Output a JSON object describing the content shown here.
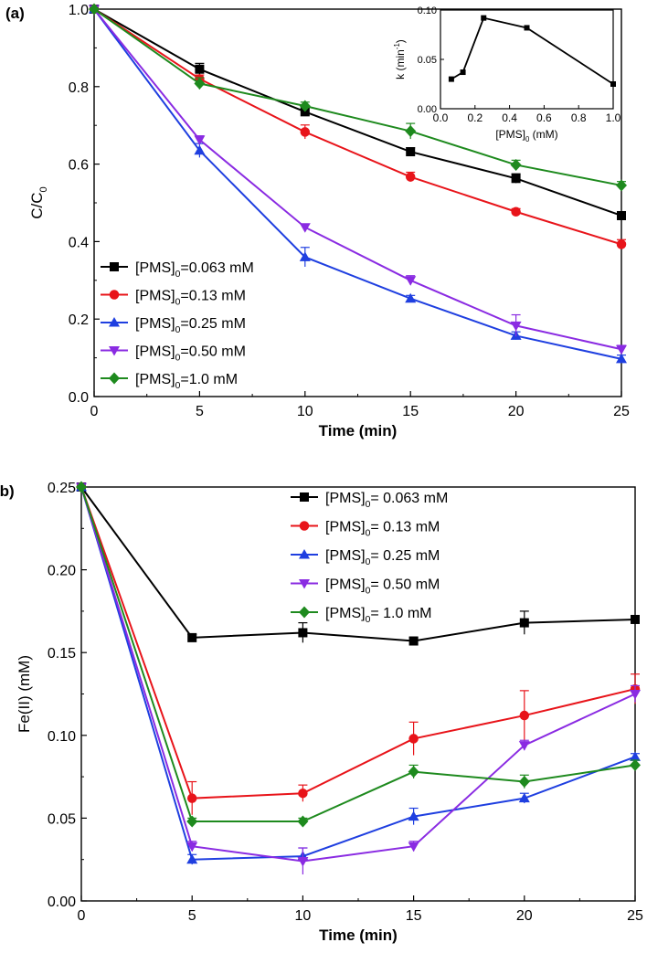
{
  "chart_data": [
    {
      "panel": "(a)",
      "type": "line",
      "xlabel": "Time (min)",
      "ylabel": "C/C",
      "ylabel_sub": "0",
      "x": [
        0,
        5,
        10,
        15,
        20,
        25
      ],
      "xlim": [
        0,
        25
      ],
      "ylim": [
        0.0,
        1.0
      ],
      "xticks": [
        "0",
        "5",
        "10",
        "15",
        "20",
        "25"
      ],
      "yticks": [
        "0.0",
        "0.2",
        "0.4",
        "0.6",
        "0.8",
        "1.0"
      ],
      "legend_position": "bottom-left",
      "series": [
        {
          "name_main": "[PMS]",
          "name_sub": "0",
          "name_rest": "=0.063 mM",
          "color": "#000000",
          "marker": "square",
          "values": [
            1.0,
            0.845,
            0.735,
            0.632,
            0.563,
            0.467
          ],
          "errors": [
            0,
            0.015,
            0.01,
            0.01,
            0.012,
            0.008
          ]
        },
        {
          "name_main": "[PMS]",
          "name_sub": "0",
          "name_rest": "=0.13 mM",
          "color": "#e8141a",
          "marker": "circle",
          "values": [
            1.0,
            0.82,
            0.683,
            0.567,
            0.477,
            0.393
          ],
          "errors": [
            0,
            0.01,
            0.018,
            0.012,
            0.008,
            0.012
          ]
        },
        {
          "name_main": "[PMS]",
          "name_sub": "0",
          "name_rest": "=0.25 mM",
          "color": "#1f3fe0",
          "marker": "triangle-up",
          "values": [
            1.0,
            0.635,
            0.36,
            0.253,
            0.157,
            0.097
          ],
          "errors": [
            0,
            0.018,
            0.025,
            0.008,
            0.01,
            0.01
          ]
        },
        {
          "name_main": "[PMS]",
          "name_sub": "0",
          "name_rest": "=0.50 mM",
          "color": "#8a2be2",
          "marker": "triangle-down",
          "values": [
            1.0,
            0.663,
            0.437,
            0.3,
            0.183,
            0.122
          ],
          "errors": [
            0,
            0.01,
            0.008,
            0.012,
            0.028,
            0.01
          ]
        },
        {
          "name_main": "[PMS]",
          "name_sub": "0",
          "name_rest": "=1.0 mM",
          "color": "#1e8a1e",
          "marker": "diamond",
          "values": [
            1.0,
            0.808,
            0.75,
            0.685,
            0.598,
            0.545
          ],
          "errors": [
            0,
            0.015,
            0.01,
            0.02,
            0.012,
            0.01
          ]
        }
      ],
      "inset": {
        "type": "line",
        "xlabel_main": "[PMS]",
        "xlabel_sub": "0",
        "xlabel_rest": " (mM)",
        "ylabel_main": "k (min",
        "ylabel_sup": "-1",
        "ylabel_rest": ")",
        "x": [
          0.063,
          0.13,
          0.25,
          0.5,
          1.0
        ],
        "values": [
          0.03,
          0.037,
          0.092,
          0.082,
          0.025
        ],
        "xlim": [
          0.0,
          1.0
        ],
        "ylim": [
          0.0,
          0.1
        ],
        "xticks": [
          "0.0",
          "0.2",
          "0.4",
          "0.6",
          "0.8",
          "1.0"
        ],
        "yticks": [
          "0.00",
          "0.05",
          "0.10"
        ],
        "color": "#000000"
      }
    },
    {
      "panel": "(b)",
      "type": "line",
      "xlabel": "Time (min)",
      "ylabel": "Fe(II) (mM)",
      "x": [
        0,
        5,
        10,
        15,
        20,
        25
      ],
      "xlim": [
        0,
        25
      ],
      "ylim": [
        0.0,
        0.25
      ],
      "xticks": [
        "0",
        "5",
        "10",
        "15",
        "20",
        "25"
      ],
      "yticks": [
        "0.00",
        "0.05",
        "0.10",
        "0.15",
        "0.20",
        "0.25"
      ],
      "legend_position": "top-right",
      "series": [
        {
          "name_main": "[PMS]",
          "name_sub": "0",
          "name_rest": "= 0.063 mM",
          "color": "#000000",
          "marker": "square",
          "values": [
            0.25,
            0.159,
            0.162,
            0.157,
            0.168,
            0.17
          ],
          "errors": [
            0,
            0.002,
            0.006,
            0.002,
            0.007,
            0.002
          ]
        },
        {
          "name_main": "[PMS]",
          "name_sub": "0",
          "name_rest": "= 0.13 mM",
          "color": "#e8141a",
          "marker": "circle",
          "values": [
            0.25,
            0.062,
            0.065,
            0.098,
            0.112,
            0.128
          ],
          "errors": [
            0,
            0.01,
            0.005,
            0.01,
            0.015,
            0.009
          ]
        },
        {
          "name_main": "[PMS]",
          "name_sub": "0",
          "name_rest": "= 0.25 mM",
          "color": "#1f3fe0",
          "marker": "triangle-up",
          "values": [
            0.25,
            0.025,
            0.027,
            0.051,
            0.062,
            0.087
          ],
          "errors": [
            0,
            0.003,
            0.005,
            0.005,
            0.003,
            0.002
          ]
        },
        {
          "name_main": "[PMS]",
          "name_sub": "0",
          "name_rest": "= 0.50 mM",
          "color": "#8a2be2",
          "marker": "triangle-down",
          "values": [
            0.25,
            0.033,
            0.024,
            0.033,
            0.094,
            0.125
          ],
          "errors": [
            0,
            0.003,
            0.008,
            0.003,
            0.003,
            0.005
          ]
        },
        {
          "name_main": "[PMS]",
          "name_sub": "0",
          "name_rest": "= 1.0 mM",
          "color": "#1e8a1e",
          "marker": "diamond",
          "values": [
            0.25,
            0.048,
            0.048,
            0.078,
            0.072,
            0.082
          ],
          "errors": [
            0,
            0.002,
            0.002,
            0.004,
            0.004,
            0.003
          ]
        }
      ]
    }
  ]
}
